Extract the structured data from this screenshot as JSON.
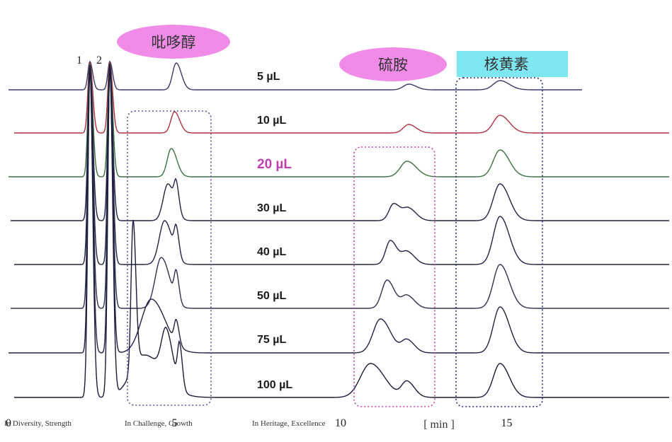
{
  "chart_data": {
    "type": "line",
    "title": "",
    "xlabel": "[ min ]",
    "ylabel": "",
    "x_ticks": [
      "0",
      "5",
      "10",
      "15"
    ],
    "xlim": [
      0,
      18.9
    ],
    "grid": false,
    "legend": "none",
    "peak_labels": [
      "1",
      "2"
    ],
    "compound_labels": [
      {
        "text": "吡哆醇",
        "color": "#f08ce8"
      },
      {
        "text": "硫胺",
        "color": "#f08ce8"
      },
      {
        "text": "核黄素",
        "color": "#7ee6f0"
      }
    ],
    "series": [
      {
        "name": "5 µL",
        "label_color": "#1a1a1a",
        "line_color": "#3a3a6a",
        "peaks": [
          {
            "t": 2.45,
            "h": 40,
            "w": 0.06
          },
          {
            "t": 3.05,
            "h": 40,
            "w": 0.06
          },
          {
            "t": 5.05,
            "h": 38,
            "w": 0.11
          },
          {
            "t": 12.05,
            "h": 8,
            "w": 0.16
          },
          {
            "t": 14.8,
            "h": 13,
            "w": 0.2
          }
        ]
      },
      {
        "name": "10 µL",
        "label_color": "#1a1a1a",
        "line_color": "#b03040",
        "peaks": [
          {
            "t": 2.45,
            "h": 100,
            "w": 0.06
          },
          {
            "t": 3.05,
            "h": 100,
            "w": 0.06
          },
          {
            "t": 5.0,
            "h": 30,
            "w": 0.11
          },
          {
            "t": 12.05,
            "h": 12,
            "w": 0.16
          },
          {
            "t": 14.8,
            "h": 25,
            "w": 0.2
          }
        ]
      },
      {
        "name": "20 µL",
        "label_color": "#c040b0",
        "line_color": "#3c7040",
        "peaks": [
          {
            "t": 2.45,
            "h": 160,
            "w": 0.06
          },
          {
            "t": 3.05,
            "h": 160,
            "w": 0.06
          },
          {
            "t": 4.9,
            "h": 40,
            "w": 0.12
          },
          {
            "t": 12.0,
            "h": 22,
            "w": 0.2
          },
          {
            "t": 14.8,
            "h": 38,
            "w": 0.2
          }
        ]
      },
      {
        "name": "30 µL",
        "label_color": "#1a1a1a",
        "line_color": "#222244",
        "peaks": [
          {
            "t": 2.45,
            "h": 220,
            "w": 0.06
          },
          {
            "t": 3.05,
            "h": 220,
            "w": 0.06
          },
          {
            "t": 4.8,
            "h": 52,
            "w": 0.14
          },
          {
            "t": 5.05,
            "h": 35,
            "w": 0.06
          },
          {
            "t": 11.6,
            "h": 24,
            "w": 0.14
          },
          {
            "t": 12.05,
            "h": 17,
            "w": 0.16
          },
          {
            "t": 14.8,
            "h": 52,
            "w": 0.2
          }
        ]
      },
      {
        "name": "40 µL",
        "label_color": "#1a1a1a",
        "line_color": "#222244",
        "peaks": [
          {
            "t": 2.45,
            "h": 280,
            "w": 0.06
          },
          {
            "t": 3.05,
            "h": 280,
            "w": 0.06
          },
          {
            "t": 4.7,
            "h": 62,
            "w": 0.16
          },
          {
            "t": 5.05,
            "h": 38,
            "w": 0.06
          },
          {
            "t": 11.5,
            "h": 34,
            "w": 0.14
          },
          {
            "t": 12.0,
            "h": 18,
            "w": 0.16
          },
          {
            "t": 14.8,
            "h": 68,
            "w": 0.2
          }
        ]
      },
      {
        "name": "50 µL",
        "label_color": "#1a1a1a",
        "line_color": "#303050",
        "peaks": [
          {
            "t": 2.45,
            "h": 340,
            "w": 0.06
          },
          {
            "t": 3.05,
            "h": 340,
            "w": 0.06
          },
          {
            "t": 4.6,
            "h": 72,
            "w": 0.18
          },
          {
            "t": 5.05,
            "h": 40,
            "w": 0.06
          },
          {
            "t": 11.4,
            "h": 40,
            "w": 0.16
          },
          {
            "t": 12.0,
            "h": 18,
            "w": 0.16
          },
          {
            "t": 14.8,
            "h": 62,
            "w": 0.2
          }
        ]
      },
      {
        "name": "75 µL",
        "label_color": "#1a1a1a",
        "line_color": "#222244",
        "peaks": [
          {
            "t": 2.45,
            "h": 400,
            "w": 0.06
          },
          {
            "t": 3.05,
            "h": 400,
            "w": 0.06
          },
          {
            "t": 4.3,
            "h": 76,
            "w": 0.3
          },
          {
            "t": 5.05,
            "h": 32,
            "w": 0.06
          },
          {
            "t": 11.2,
            "h": 48,
            "w": 0.22
          },
          {
            "t": 12.0,
            "h": 18,
            "w": 0.16
          },
          {
            "t": 14.8,
            "h": 65,
            "w": 0.2
          }
        ]
      },
      {
        "name": "100 µL",
        "label_color": "#1a1a1a",
        "line_color": "#1a1a3a",
        "peaks": [
          {
            "t": 2.45,
            "h": 470,
            "w": 0.06
          },
          {
            "t": 3.05,
            "h": 470,
            "w": 0.06
          },
          {
            "t": 3.75,
            "h": 210,
            "w": 0.06
          },
          {
            "t": 4.1,
            "h": 60,
            "w": 0.4
          },
          {
            "t": 4.75,
            "h": 68,
            "w": 0.14
          },
          {
            "t": 5.15,
            "h": 60,
            "w": 0.06
          },
          {
            "t": 10.9,
            "h": 48,
            "w": 0.3
          },
          {
            "t": 12.0,
            "h": 22,
            "w": 0.16
          },
          {
            "t": 14.8,
            "h": 48,
            "w": 0.2
          }
        ]
      }
    ]
  },
  "watermark": [
    "In Diversity, Strength",
    "In Challenge, Growth",
    "In Heritage, Excellence"
  ]
}
